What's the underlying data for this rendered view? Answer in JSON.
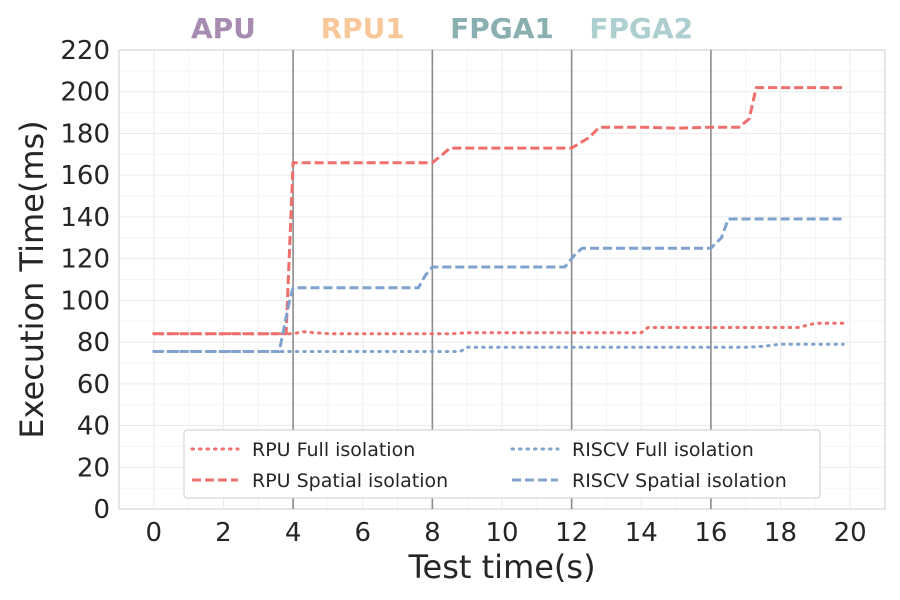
{
  "chart_data": {
    "type": "line",
    "title": "",
    "xlabel": "Test time(s)",
    "ylabel": "Execution Time(ms)",
    "xlim": [
      -1,
      21
    ],
    "ylim": [
      0,
      220
    ],
    "xticks": [
      0,
      2,
      4,
      6,
      8,
      10,
      12,
      14,
      16,
      18,
      20
    ],
    "yticks": [
      0,
      20,
      40,
      60,
      80,
      100,
      120,
      140,
      160,
      180,
      200,
      220
    ],
    "grid": true,
    "legend_placement": "lower-center",
    "legend_columns": 2,
    "phases": [
      {
        "label": "APU",
        "x": 0,
        "color": "#A78BB0"
      },
      {
        "label": "RPU1",
        "x": 4,
        "color": "#F9C89A"
      },
      {
        "label": "FPGA1",
        "x": 8,
        "color": "#8AAFB0"
      },
      {
        "label": "FPGA2",
        "x": 12,
        "color": "#AECFCF"
      }
    ],
    "boundaries": [
      4,
      8,
      12,
      16
    ],
    "series": [
      {
        "name": "RPU Full isolation",
        "style": "dotted",
        "color": "#EF6F6C",
        "points": [
          [
            0,
            84
          ],
          [
            0.5,
            84
          ],
          [
            1,
            84
          ],
          [
            1.5,
            84
          ],
          [
            2,
            84
          ],
          [
            2.5,
            84
          ],
          [
            3,
            84
          ],
          [
            3.5,
            84
          ],
          [
            4,
            84
          ],
          [
            4.3,
            85
          ],
          [
            4.6,
            84.5
          ],
          [
            5,
            84
          ],
          [
            6,
            84
          ],
          [
            7,
            84
          ],
          [
            8,
            84
          ],
          [
            8.6,
            84
          ],
          [
            9,
            84.5
          ],
          [
            10,
            84.5
          ],
          [
            11,
            84.5
          ],
          [
            12,
            84.5
          ],
          [
            13,
            84.5
          ],
          [
            14,
            84.5
          ],
          [
            14.2,
            87
          ],
          [
            15,
            87
          ],
          [
            16,
            87
          ],
          [
            17,
            87
          ],
          [
            18,
            87
          ],
          [
            18.5,
            87
          ],
          [
            19,
            89
          ],
          [
            19.8,
            89
          ]
        ]
      },
      {
        "name": "RPU Spatial isolation",
        "style": "dashed",
        "color": "#EF6F6C",
        "points": [
          [
            0,
            84
          ],
          [
            1,
            84
          ],
          [
            2,
            84
          ],
          [
            3,
            84
          ],
          [
            3.8,
            84
          ],
          [
            4,
            166
          ],
          [
            5,
            166
          ],
          [
            6,
            166
          ],
          [
            7,
            166
          ],
          [
            8,
            166
          ],
          [
            8.3,
            170
          ],
          [
            8.5,
            173
          ],
          [
            9,
            173
          ],
          [
            10,
            173
          ],
          [
            11,
            173
          ],
          [
            12,
            173
          ],
          [
            12.5,
            178
          ],
          [
            12.8,
            183
          ],
          [
            13,
            183
          ],
          [
            14,
            183
          ],
          [
            15,
            182.5
          ],
          [
            16,
            183
          ],
          [
            16.8,
            183
          ],
          [
            17.1,
            187
          ],
          [
            17.3,
            202
          ],
          [
            18,
            202
          ],
          [
            19,
            202
          ],
          [
            19.8,
            202
          ]
        ]
      },
      {
        "name": "RISCV Full isolation",
        "style": "dotted",
        "color": "#7FA3CE",
        "points": [
          [
            0,
            75.5
          ],
          [
            1,
            75.5
          ],
          [
            2,
            75.5
          ],
          [
            3,
            75.5
          ],
          [
            4,
            75.5
          ],
          [
            5,
            75.5
          ],
          [
            6,
            75.5
          ],
          [
            7,
            75.5
          ],
          [
            8,
            75.5
          ],
          [
            8.8,
            75.5
          ],
          [
            9,
            77.5
          ],
          [
            10,
            77.5
          ],
          [
            11,
            77.5
          ],
          [
            12,
            77.5
          ],
          [
            13,
            77.5
          ],
          [
            14,
            77.5
          ],
          [
            15,
            77.5
          ],
          [
            16,
            77.5
          ],
          [
            17,
            77.5
          ],
          [
            17.5,
            78
          ],
          [
            18,
            79
          ],
          [
            19,
            79
          ],
          [
            19.8,
            79
          ]
        ]
      },
      {
        "name": "RISCV Spatial isolation",
        "style": "dashed",
        "color": "#7FA3CE",
        "points": [
          [
            0,
            75.5
          ],
          [
            1,
            75.5
          ],
          [
            2,
            75.5
          ],
          [
            3,
            75.5
          ],
          [
            3.6,
            75.5
          ],
          [
            3.9,
            100
          ],
          [
            4,
            106
          ],
          [
            5,
            106
          ],
          [
            6,
            106
          ],
          [
            7,
            106
          ],
          [
            7.6,
            106
          ],
          [
            7.8,
            112
          ],
          [
            8,
            116
          ],
          [
            9,
            116
          ],
          [
            10,
            116
          ],
          [
            11,
            116
          ],
          [
            11.8,
            116
          ],
          [
            12.1,
            122
          ],
          [
            12.3,
            125
          ],
          [
            13,
            125
          ],
          [
            14,
            125
          ],
          [
            15,
            125
          ],
          [
            16,
            125
          ],
          [
            16.3,
            130
          ],
          [
            16.5,
            139
          ],
          [
            17,
            139
          ],
          [
            18,
            139
          ],
          [
            19,
            139
          ],
          [
            19.8,
            139
          ]
        ]
      }
    ]
  }
}
